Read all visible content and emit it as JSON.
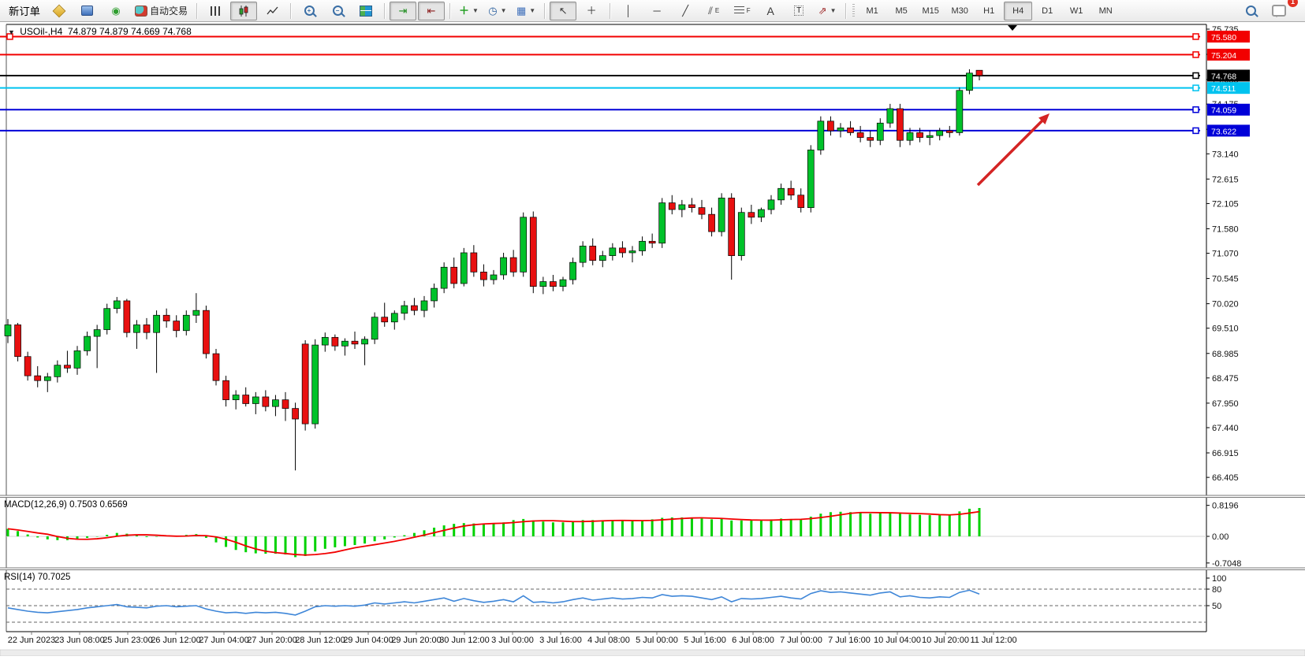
{
  "toolbar": {
    "new_order_label": "新订单",
    "autotrading_label": "自动交易",
    "timeframes": [
      "M1",
      "M5",
      "M15",
      "M30",
      "H1",
      "H4",
      "D1",
      "W1",
      "MN"
    ],
    "active_timeframe": "H4",
    "notification_count": "1"
  },
  "chart": {
    "title_symbol": "USOil-,H4",
    "title_ohlc": "74.879 74.879 74.669 74.768"
  },
  "chart_data": {
    "type": "candlestick",
    "symbol": "USOil-",
    "timeframe": "H4",
    "current_bar": {
      "open": "74.879",
      "high": "74.879",
      "low": "74.669",
      "close": "74.768"
    },
    "bull_color": "#00c22a",
    "bear_color": "#e81010",
    "price_axis_ticks": [
      "75.735",
      "75.210",
      "74.685",
      "74.175",
      "73.650",
      "73.140",
      "72.615",
      "72.105",
      "71.580",
      "71.070",
      "70.545",
      "70.020",
      "69.510",
      "68.985",
      "68.475",
      "67.950",
      "67.440",
      "66.915",
      "66.405"
    ],
    "horizontal_lines": [
      {
        "price": 75.58,
        "label": "75.580",
        "color": "#f20000"
      },
      {
        "price": 75.204,
        "label": "75.204",
        "color": "#f20000"
      },
      {
        "price": 74.768,
        "label": "74.768",
        "color": "#000000"
      },
      {
        "price": 74.511,
        "label": "74.511",
        "color": "#00c3ef"
      },
      {
        "price": 74.059,
        "label": "74.059",
        "color": "#0000d8"
      },
      {
        "price": 73.622,
        "label": "73.622",
        "color": "#0000d8"
      }
    ],
    "candles": [
      [
        69.35,
        69.7,
        69.2,
        69.58
      ],
      [
        69.58,
        69.62,
        68.82,
        68.92
      ],
      [
        68.92,
        69.02,
        68.42,
        68.52
      ],
      [
        68.52,
        68.72,
        68.28,
        68.42
      ],
      [
        68.42,
        68.58,
        68.18,
        68.5
      ],
      [
        68.5,
        68.84,
        68.38,
        68.74
      ],
      [
        68.74,
        69.04,
        68.58,
        68.68
      ],
      [
        68.68,
        69.14,
        68.54,
        69.04
      ],
      [
        69.04,
        69.44,
        68.94,
        69.34
      ],
      [
        69.34,
        69.58,
        68.68,
        69.48
      ],
      [
        69.48,
        70.02,
        69.38,
        69.92
      ],
      [
        69.92,
        70.16,
        69.82,
        70.08
      ],
      [
        70.08,
        70.12,
        69.32,
        69.42
      ],
      [
        69.42,
        69.68,
        69.08,
        69.58
      ],
      [
        69.58,
        69.72,
        69.28,
        69.42
      ],
      [
        69.42,
        69.88,
        68.58,
        69.78
      ],
      [
        69.78,
        69.92,
        69.52,
        69.66
      ],
      [
        69.66,
        69.78,
        69.32,
        69.46
      ],
      [
        69.46,
        69.88,
        69.36,
        69.78
      ],
      [
        69.78,
        70.24,
        69.62,
        69.88
      ],
      [
        69.88,
        69.98,
        68.88,
        68.98
      ],
      [
        68.98,
        69.08,
        68.32,
        68.42
      ],
      [
        68.42,
        68.52,
        67.88,
        68.02
      ],
      [
        68.02,
        68.22,
        67.82,
        68.12
      ],
      [
        68.12,
        68.28,
        67.88,
        67.94
      ],
      [
        67.94,
        68.18,
        67.72,
        68.08
      ],
      [
        68.08,
        68.22,
        67.78,
        67.88
      ],
      [
        67.88,
        68.12,
        67.68,
        68.02
      ],
      [
        68.02,
        68.18,
        67.58,
        67.84
      ],
      [
        67.84,
        67.96,
        66.55,
        67.62
      ],
      [
        69.18,
        69.26,
        67.38,
        67.52
      ],
      [
        67.52,
        69.28,
        67.42,
        69.16
      ],
      [
        69.16,
        69.42,
        69.02,
        69.32
      ],
      [
        69.32,
        69.38,
        69.04,
        69.14
      ],
      [
        69.14,
        69.3,
        68.94,
        69.24
      ],
      [
        69.24,
        69.44,
        69.08,
        69.18
      ],
      [
        69.18,
        69.34,
        68.74,
        69.28
      ],
      [
        69.28,
        69.84,
        69.18,
        69.74
      ],
      [
        69.74,
        70.04,
        69.54,
        69.64
      ],
      [
        69.64,
        69.88,
        69.48,
        69.82
      ],
      [
        69.82,
        70.08,
        69.68,
        69.98
      ],
      [
        69.98,
        70.14,
        69.78,
        69.88
      ],
      [
        69.88,
        70.18,
        69.74,
        70.08
      ],
      [
        70.08,
        70.44,
        69.94,
        70.34
      ],
      [
        70.34,
        70.88,
        70.24,
        70.78
      ],
      [
        70.78,
        70.98,
        70.34,
        70.44
      ],
      [
        70.44,
        71.18,
        70.38,
        71.08
      ],
      [
        71.08,
        71.24,
        70.58,
        70.68
      ],
      [
        70.68,
        70.84,
        70.38,
        70.52
      ],
      [
        70.52,
        70.72,
        70.42,
        70.62
      ],
      [
        70.62,
        71.08,
        70.52,
        70.98
      ],
      [
        70.98,
        71.14,
        70.58,
        70.68
      ],
      [
        70.68,
        71.92,
        70.58,
        71.82
      ],
      [
        71.82,
        71.94,
        70.24,
        70.38
      ],
      [
        70.38,
        70.58,
        70.22,
        70.48
      ],
      [
        70.48,
        70.62,
        70.28,
        70.38
      ],
      [
        70.38,
        70.58,
        70.28,
        70.52
      ],
      [
        70.52,
        70.98,
        70.42,
        70.88
      ],
      [
        70.88,
        71.32,
        70.78,
        71.22
      ],
      [
        71.22,
        71.38,
        70.82,
        70.92
      ],
      [
        70.92,
        71.12,
        70.78,
        71.02
      ],
      [
        71.02,
        71.28,
        70.92,
        71.18
      ],
      [
        71.18,
        71.32,
        70.98,
        71.08
      ],
      [
        71.08,
        71.22,
        70.88,
        71.12
      ],
      [
        71.12,
        71.42,
        71.02,
        71.32
      ],
      [
        71.32,
        71.48,
        71.18,
        71.28
      ],
      [
        71.28,
        72.22,
        71.18,
        72.12
      ],
      [
        72.12,
        72.28,
        71.88,
        71.98
      ],
      [
        71.98,
        72.18,
        71.82,
        72.08
      ],
      [
        72.08,
        72.22,
        71.92,
        72.02
      ],
      [
        72.02,
        72.18,
        71.78,
        71.88
      ],
      [
        71.88,
        72.02,
        71.42,
        71.52
      ],
      [
        71.52,
        72.32,
        71.42,
        72.22
      ],
      [
        72.22,
        72.32,
        70.52,
        71.02
      ],
      [
        71.02,
        72.02,
        70.92,
        71.92
      ],
      [
        71.92,
        72.08,
        71.68,
        71.82
      ],
      [
        71.82,
        72.02,
        71.72,
        71.98
      ],
      [
        71.98,
        72.28,
        71.88,
        72.18
      ],
      [
        72.18,
        72.52,
        72.08,
        72.42
      ],
      [
        72.42,
        72.58,
        72.18,
        72.28
      ],
      [
        72.28,
        72.42,
        71.92,
        72.02
      ],
      [
        72.02,
        73.32,
        71.92,
        73.22
      ],
      [
        73.22,
        73.92,
        73.12,
        73.82
      ],
      [
        73.82,
        73.92,
        73.52,
        73.62
      ],
      [
        73.62,
        73.78,
        73.48,
        73.68
      ],
      [
        73.68,
        73.82,
        73.52,
        73.58
      ],
      [
        73.58,
        73.72,
        73.38,
        73.48
      ],
      [
        73.48,
        73.62,
        73.28,
        73.42
      ],
      [
        73.42,
        73.88,
        73.32,
        73.78
      ],
      [
        73.78,
        74.18,
        73.68,
        74.08
      ],
      [
        74.08,
        74.18,
        73.28,
        73.42
      ],
      [
        73.42,
        73.68,
        73.32,
        73.58
      ],
      [
        73.58,
        73.68,
        73.38,
        73.48
      ],
      [
        73.48,
        73.62,
        73.32,
        73.52
      ],
      [
        73.52,
        73.68,
        73.42,
        73.62
      ],
      [
        73.62,
        73.72,
        73.48,
        73.58
      ],
      [
        73.58,
        74.52,
        73.52,
        74.46
      ],
      [
        74.46,
        74.9,
        74.38,
        74.82
      ],
      [
        74.879,
        74.879,
        74.669,
        74.768
      ]
    ],
    "time_labels": [
      "22 Jun 2023",
      "23 Jun 08:00",
      "25 Jun 23:00",
      "26 Jun 12:00",
      "27 Jun 04:00",
      "27 Jun 20:00",
      "28 Jun 12:00",
      "29 Jun 04:00",
      "29 Jun 20:00",
      "30 Jun 12:00",
      "3 Jul 00:00",
      "3 Jul 16:00",
      "4 Jul 08:00",
      "5 Jul 00:00",
      "5 Jul 16:00",
      "6 Jul 08:00",
      "7 Jul 00:00",
      "7 Jul 16:00",
      "10 Jul 04:00",
      "10 Jul 20:00",
      "11 Jul 12:00"
    ],
    "macd": {
      "label": "MACD(12,26,9) 0.7503 0.6569",
      "main_value": "0.7503",
      "signal_value": "0.6569",
      "axis_ticks": [
        "0.8196",
        "0.00",
        "-0.7048"
      ],
      "histogram_color": "#00d200",
      "signal_color": "#f20000",
      "histogram": [
        0.2,
        0.14,
        0.05,
        -0.03,
        -0.08,
        -0.1,
        -0.1,
        -0.07,
        -0.04,
        -0.01,
        0.04,
        0.09,
        0.07,
        0.02,
        -0.02,
        -0.01,
        0.01,
        0.02,
        0.04,
        0.06,
        -0.04,
        -0.16,
        -0.28,
        -0.36,
        -0.42,
        -0.45,
        -0.46,
        -0.46,
        -0.48,
        -0.55,
        -0.52,
        -0.4,
        -0.33,
        -0.29,
        -0.26,
        -0.23,
        -0.19,
        -0.13,
        -0.08,
        -0.03,
        0.03,
        0.09,
        0.16,
        0.23,
        0.29,
        0.33,
        0.35,
        0.34,
        0.33,
        0.35,
        0.37,
        0.43,
        0.46,
        0.42,
        0.39,
        0.37,
        0.37,
        0.4,
        0.43,
        0.43,
        0.42,
        0.42,
        0.41,
        0.41,
        0.42,
        0.45,
        0.49,
        0.5,
        0.5,
        0.49,
        0.47,
        0.45,
        0.46,
        0.42,
        0.42,
        0.42,
        0.43,
        0.45,
        0.47,
        0.46,
        0.44,
        0.52,
        0.6,
        0.64,
        0.65,
        0.64,
        0.62,
        0.6,
        0.62,
        0.64,
        0.6,
        0.58,
        0.57,
        0.56,
        0.56,
        0.57,
        0.66,
        0.73,
        0.75
      ]
    },
    "rsi": {
      "label": "RSI(14) 70.7025",
      "value": "70.7025",
      "axis_ticks": [
        "100",
        "80",
        "50"
      ],
      "levels": [
        80,
        50,
        20
      ],
      "line_color": "#3e86d8",
      "values": [
        46,
        43,
        40,
        38,
        37,
        39,
        41,
        43,
        46,
        48,
        50,
        52,
        48,
        47,
        46,
        49,
        50,
        48,
        49,
        50,
        44,
        40,
        37,
        38,
        36,
        38,
        37,
        38,
        36,
        33,
        40,
        48,
        50,
        49,
        50,
        49,
        51,
        55,
        53,
        55,
        57,
        55,
        58,
        61,
        64,
        58,
        63,
        59,
        56,
        58,
        61,
        57,
        68,
        56,
        57,
        55,
        57,
        61,
        64,
        60,
        62,
        64,
        62,
        63,
        65,
        64,
        70,
        67,
        68,
        67,
        64,
        61,
        66,
        57,
        63,
        62,
        63,
        65,
        67,
        64,
        62,
        72,
        77,
        74,
        75,
        73,
        71,
        69,
        73,
        75,
        66,
        68,
        65,
        64,
        66,
        65,
        74,
        78,
        71
      ]
    },
    "arrow": {
      "color": "#d42424"
    }
  }
}
